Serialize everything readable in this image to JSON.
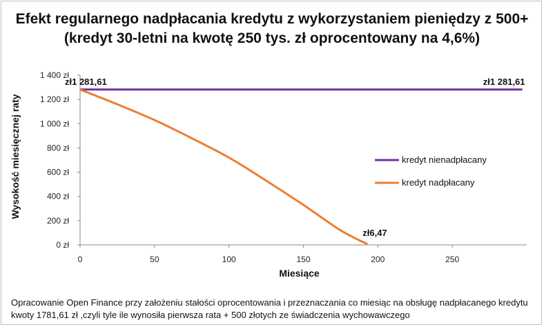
{
  "chart_data": {
    "type": "line",
    "title": "Efekt regularnego nadpłacania kredytu z wykorzystaniem pieniędzy z 500+\n(kredyt 30-letni na kwotę 250 tys. zł oprocentowany na 4,6%)",
    "xlabel": "Miesiące",
    "ylabel": "Wysokość miesięcznej raty",
    "xlim": [
      0,
      300
    ],
    "ylim": [
      0,
      1400
    ],
    "x_ticks": [
      "0",
      "50",
      "100",
      "150",
      "200",
      "250"
    ],
    "y_ticks": [
      "0 zł",
      "200 zł",
      "400 zł",
      "600 zł",
      "800 zł",
      "1 000 zł",
      "1 200 zł",
      "1 400 zł"
    ],
    "grid": false,
    "legend_position": "right",
    "series": [
      {
        "name": "kredyt nienadpłacany",
        "color": "#7030a0",
        "x": [
          0,
          297
        ],
        "y": [
          1281.61,
          1281.61
        ]
      },
      {
        "name": "kredyt nadpłacany",
        "color": "#ed7d31",
        "x": [
          0,
          25,
          50,
          75,
          100,
          125,
          150,
          175,
          193
        ],
        "y": [
          1281.61,
          1160,
          1030,
          880,
          720,
          530,
          330,
          120,
          6.47
        ]
      }
    ],
    "annotations": [
      {
        "text": "zł1 281,61",
        "x": 0,
        "y": 1281.61
      },
      {
        "text": "zł1 281,61",
        "x": 297,
        "y": 1281.61
      },
      {
        "text": "zł6,47",
        "x": 193,
        "y": 6.47
      }
    ]
  },
  "footnote": "Opracowanie Open Finance przy założeniu stałości oprocentowania i przeznaczania co miesiąc na obsługę nadpłacanego kredytu kwoty 1781,61 zł ,czyli tyle ile wynosiła pierwsza rata + 500 złotych ze świadczenia wychowawczego"
}
